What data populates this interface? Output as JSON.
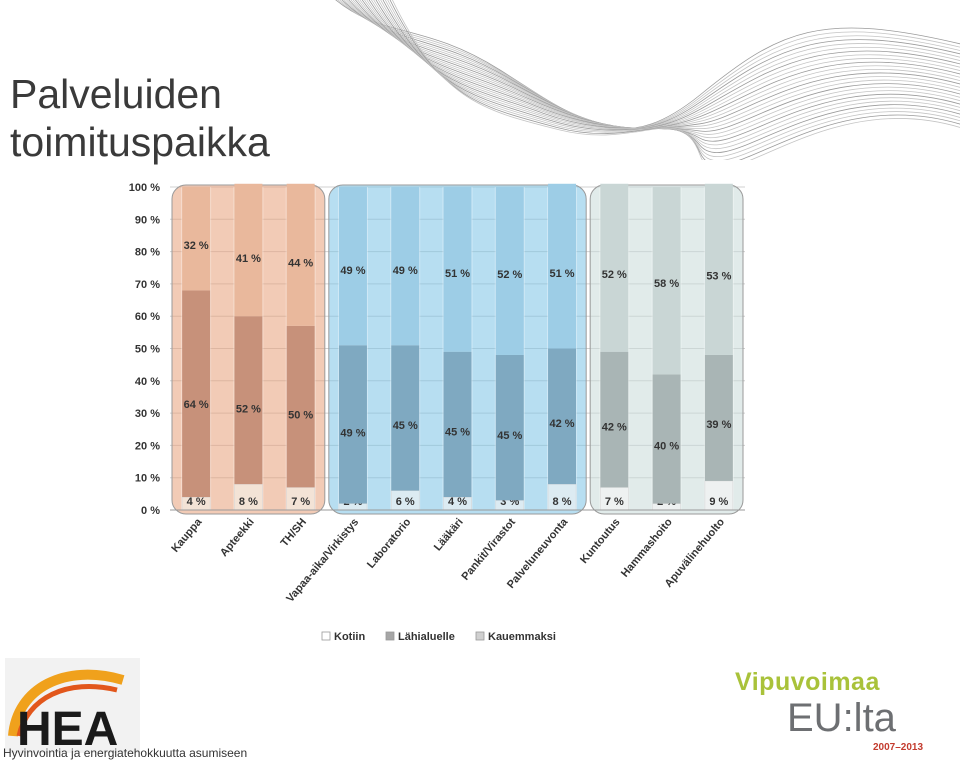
{
  "slide": {
    "title_line1": "Palveluiden",
    "title_line2": "toimituspaikka"
  },
  "chart_data": {
    "type": "bar",
    "stacked": true,
    "orientation": "vertical",
    "percent_stacked": true,
    "categories": [
      "Kauppa",
      "Apteekki",
      "TH/SH",
      "Vapaa-aika/Virkistys",
      "Laboratorio",
      "Lääkäri",
      "Pankit/Virastot",
      "Palveluneuvonta",
      "Kuntoutus",
      "Hammashoito",
      "Apuvälinehuolto"
    ],
    "series": [
      {
        "name": "Kotiin",
        "values": [
          4,
          8,
          7,
          2,
          6,
          4,
          3,
          8,
          7,
          2,
          9
        ]
      },
      {
        "name": "Lähialuelle",
        "values": [
          64,
          52,
          50,
          49,
          45,
          45,
          45,
          42,
          42,
          40,
          39
        ]
      },
      {
        "name": "Kauemmaksi",
        "values": [
          32,
          41,
          44,
          49,
          49,
          51,
          52,
          51,
          52,
          58,
          53
        ]
      }
    ],
    "value_labels": [
      [
        "4 %",
        "8 %",
        "7 %",
        "2 %",
        "6 %",
        "4 %",
        "3 %",
        "8 %",
        "7 %",
        "2 %",
        "9 %"
      ],
      [
        "64 %",
        "52 %",
        "50 %",
        "49 %",
        "45 %",
        "45 %",
        "45 %",
        "42 %",
        "42 %",
        "40 %",
        "39 %"
      ],
      [
        "32 %",
        "41 %",
        "44 %",
        "49 %",
        "49 %",
        "51 %",
        "52 %",
        "51 %",
        "52 %",
        "58 %",
        "53 %"
      ]
    ],
    "y_ticks": [
      "0 %",
      "10 %",
      "20 %",
      "30 %",
      "40 %",
      "50 %",
      "60 %",
      "70 %",
      "80 %",
      "90 %",
      "100 %"
    ],
    "ylim": [
      0,
      100
    ],
    "grid": true,
    "legend_position": "bottom",
    "group_highlights": [
      {
        "categories": [
          "Kauppa",
          "Apteekki",
          "TH/SH"
        ],
        "color": "#e8a07a"
      },
      {
        "categories": [
          "Vapaa-aika/Virkistys",
          "Laboratorio",
          "Lääkäri",
          "Pankit/Virastot",
          "Palveluneuvonta"
        ],
        "color": "#7cc3e6"
      },
      {
        "categories": [
          "Kuntoutus",
          "Hammashoito",
          "Apuvälinehuolto"
        ],
        "color": "#c8dbd9"
      }
    ]
  },
  "logos": {
    "hea_text": "HEA",
    "hea_caption": "Hyvinvointia ja energiatehokkuutta asumiseen",
    "eu_line1": "Vipuvoimaa",
    "eu_line2": "EU:lta",
    "eu_line3": "2007–2013"
  }
}
